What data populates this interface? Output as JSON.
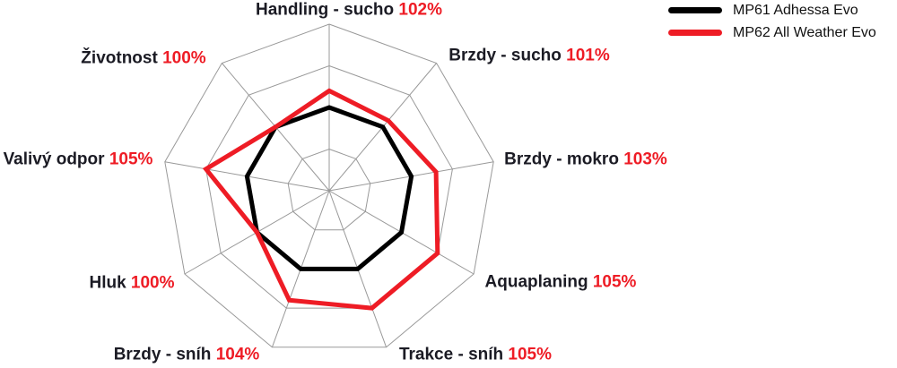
{
  "chart_data": {
    "type": "radar",
    "categories": [
      "Handling - sucho",
      "Brzdy - sucho",
      "Brzdy - mokro",
      "Aquaplaning",
      "Trakce - sníh",
      "Brzdy - sníh",
      "Hluk",
      "Valivý odpor",
      "Životnost"
    ],
    "axis_value_labels": [
      "102%",
      "101%",
      "103%",
      "105%",
      "105%",
      "104%",
      "100%",
      "105%",
      "100%"
    ],
    "series": [
      {
        "name": "MP61 Adhessa Evo",
        "color": "#000000",
        "values": [
          100,
          100,
          100,
          100,
          100,
          100,
          100,
          100,
          100
        ]
      },
      {
        "name": "MP62 All Weather Evo",
        "color": "#ee1c25",
        "values": [
          102,
          101,
          103,
          105,
          105,
          104,
          100,
          105,
          100
        ]
      }
    ],
    "scale": {
      "center_value": 90,
      "max_value": 110,
      "ring_values": [
        95,
        100,
        105,
        110
      ]
    },
    "grid": {
      "color": "#999999",
      "shape": "polygon",
      "spokes": true
    },
    "legend_position": "top-right"
  },
  "colors": {
    "axis_label_text": "#1b1b24",
    "axis_value_text": "#ee1c25",
    "background": "#ffffff"
  }
}
